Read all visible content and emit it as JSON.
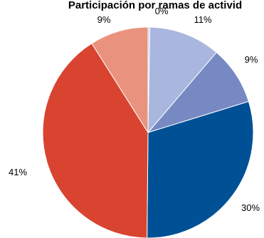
{
  "chart_data": {
    "type": "pie",
    "title": "Participación por ramas de activid",
    "slices": [
      {
        "label": "0%",
        "value": 0.3,
        "color": "#c8d0ea"
      },
      {
        "label": "11%",
        "value": 11,
        "color": "#a9b6de"
      },
      {
        "label": "9%",
        "value": 9,
        "color": "#7689c2"
      },
      {
        "label": "30%",
        "value": 30,
        "color": "#005096"
      },
      {
        "label": "41%",
        "value": 41,
        "color": "#d84430"
      },
      {
        "label": "9%",
        "value": 9,
        "color": "#e9937e"
      }
    ]
  }
}
